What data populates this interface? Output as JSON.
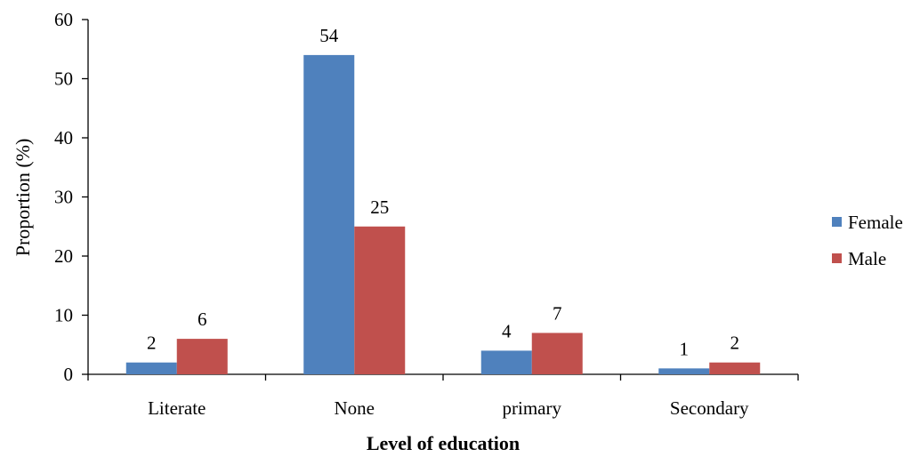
{
  "chart_data": {
    "type": "bar",
    "title": "",
    "xlabel": "Level of education",
    "ylabel": "Proportion (%)",
    "categories": [
      "Literate",
      "None",
      "primary",
      "Secondary"
    ],
    "series": [
      {
        "name": "Female",
        "values": [
          2,
          54,
          4,
          1
        ],
        "color": "#4F81BD"
      },
      {
        "name": "Male",
        "values": [
          6,
          25,
          7,
          2
        ],
        "color": "#C0504D"
      }
    ],
    "ylim": [
      0,
      60
    ],
    "yticks": [
      0,
      10,
      20,
      30,
      40,
      50,
      60
    ],
    "grid": false,
    "legend_position": "right",
    "data_labels": true
  }
}
